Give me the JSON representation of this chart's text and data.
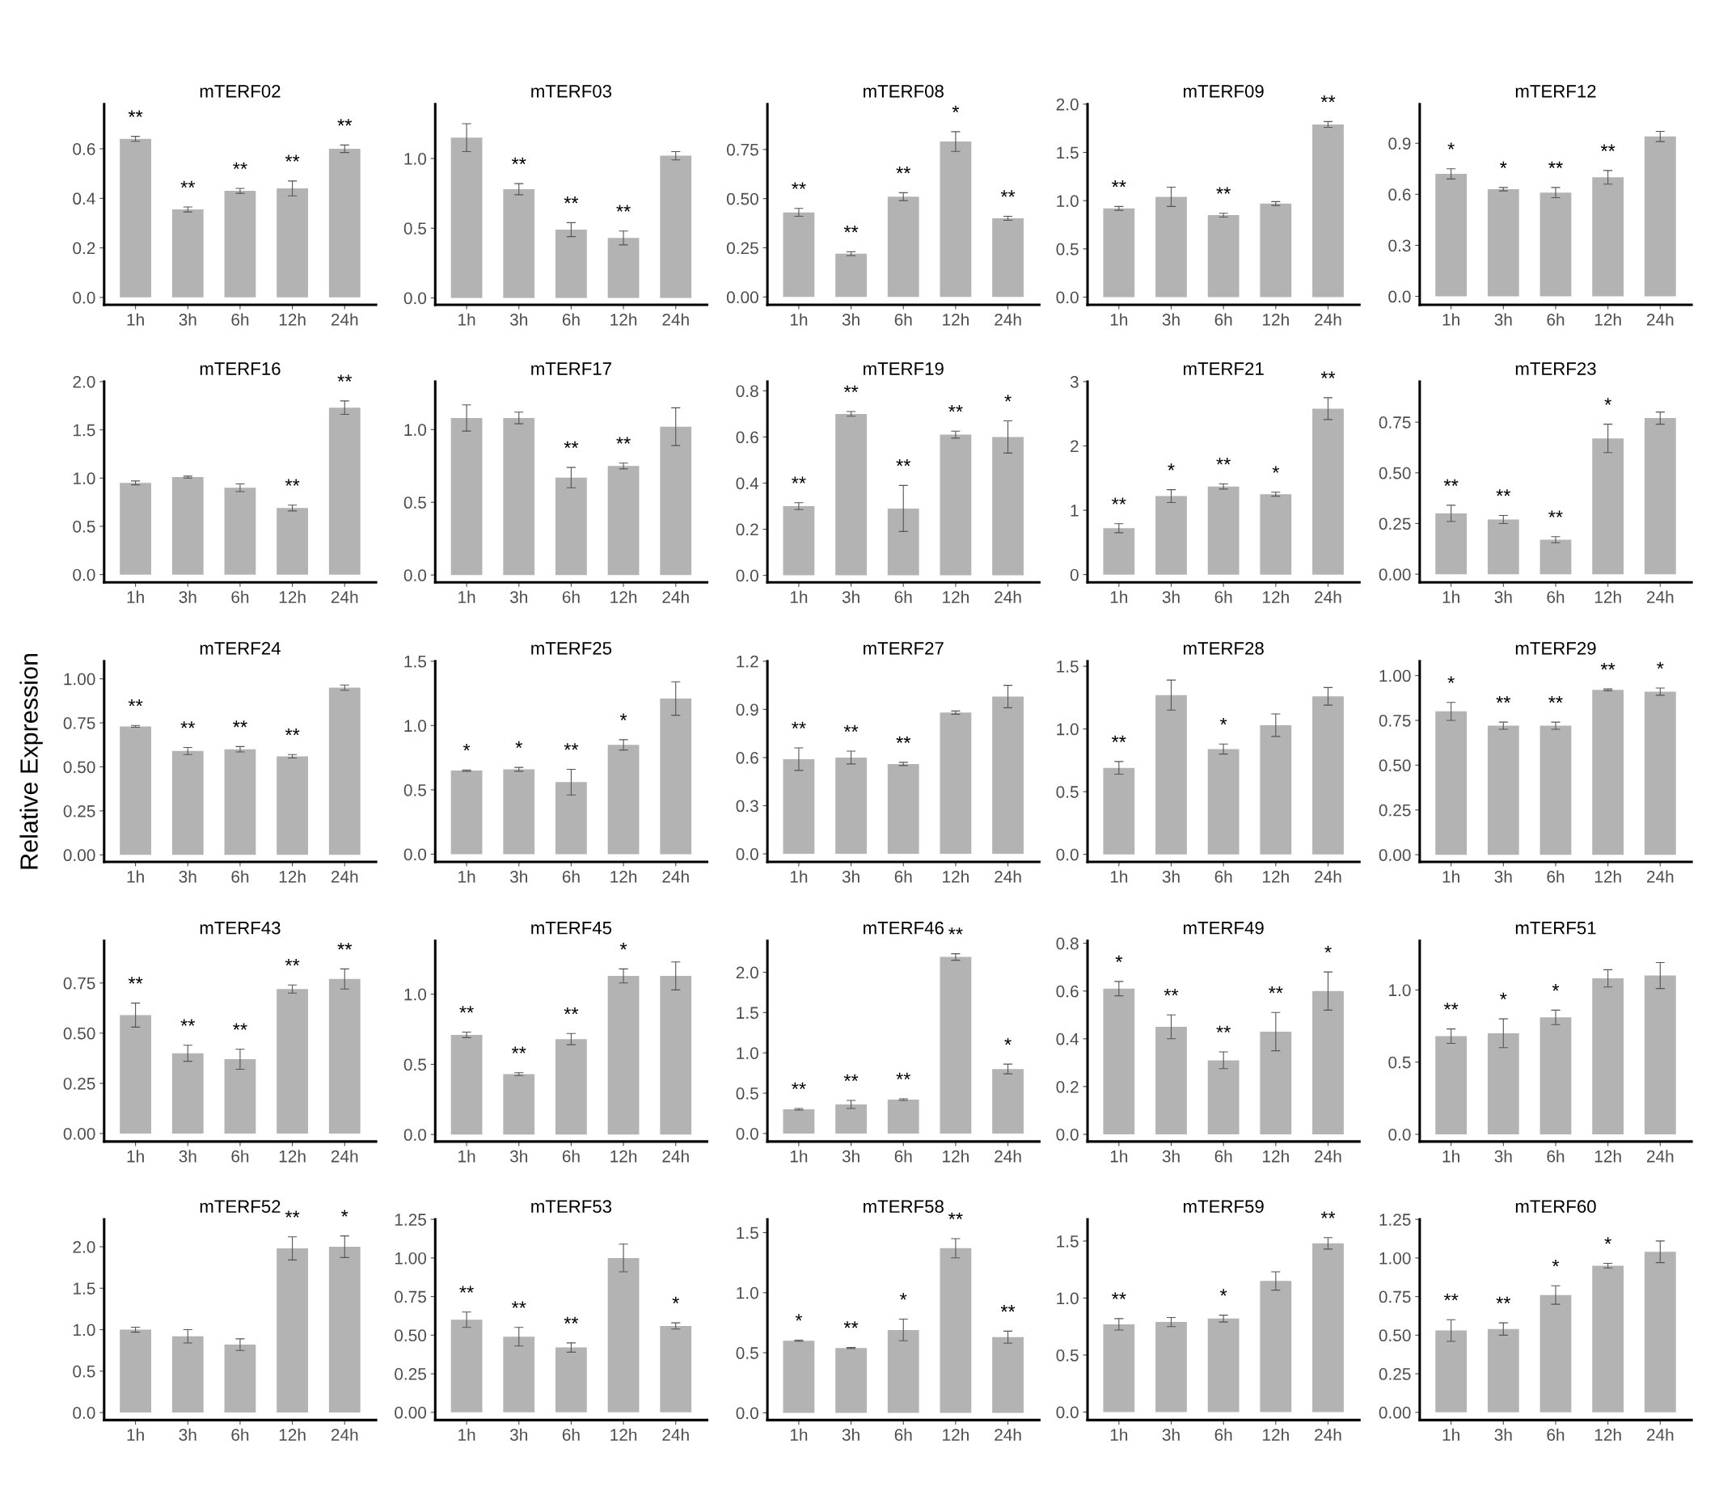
{
  "chart_data": [
    {
      "type": "bar",
      "title": "mTERF02",
      "categories": [
        "1h",
        "3h",
        "6h",
        "12h",
        "24h"
      ],
      "values": [
        0.64,
        0.355,
        0.43,
        0.44,
        0.6
      ],
      "errors": [
        0.01,
        0.01,
        0.01,
        0.03,
        0.015
      ],
      "color": "#b3b3b3",
      "ylim": [
        -0.03,
        0.78
      ],
      "yticks": [
        {
          "value": 0,
          "label": "0.0"
        },
        0.2,
        0.4,
        0.6
      ],
      "annotations": [
        {
          "text": "**",
          "x": "1h",
          "y": 0.65
        },
        {
          "text": "**",
          "x": "3h",
          "y": 0.365
        },
        {
          "text": "**",
          "x": "6h",
          "y": 0.44
        },
        {
          "text": "**",
          "x": "12h",
          "y": 0.47
        },
        {
          "text": "**",
          "x": "24h",
          "y": 0.615
        }
      ]
    },
    {
      "type": "bar",
      "title": "mTERF03",
      "categories": [
        "1h",
        "3h",
        "6h",
        "12h",
        "24h"
      ],
      "values": [
        1.15,
        0.78,
        0.49,
        0.43,
        1.02
      ],
      "errors": [
        0.1,
        0.04,
        0.05,
        0.05,
        0.03
      ],
      "color": "#b3b3b3",
      "ylim": [
        -0.05,
        1.39
      ],
      "yticks": [
        {
          "value": 0,
          "label": "0.0"
        },
        0.5,
        {
          "value": 1,
          "label": "1.0"
        }
      ],
      "annotations": [
        {
          "text": "**",
          "x": "3h",
          "y": 0.82
        },
        {
          "text": "**",
          "x": "6h",
          "y": 0.54
        },
        {
          "text": "**",
          "x": "12h",
          "y": 0.48
        }
      ]
    },
    {
      "type": "bar",
      "title": "mTERF08",
      "categories": [
        "1h",
        "3h",
        "6h",
        "12h",
        "24h"
      ],
      "values": [
        0.43,
        0.22,
        0.51,
        0.79,
        0.4
      ],
      "errors": [
        0.02,
        0.01,
        0.02,
        0.05,
        0.01
      ],
      "color": "#b3b3b3",
      "ylim": [
        -0.04,
        0.98
      ],
      "yticks": [
        {
          "value": 0,
          "label": "0.00"
        },
        0.25,
        {
          "value": 0.5,
          "label": "0.50"
        },
        0.75
      ],
      "annotations": [
        {
          "text": "**",
          "x": "1h",
          "y": 0.45
        },
        {
          "text": "**",
          "x": "3h",
          "y": 0.23
        },
        {
          "text": "**",
          "x": "6h",
          "y": 0.53
        },
        {
          "text": "*",
          "x": "12h",
          "y": 0.84
        },
        {
          "text": "**",
          "x": "24h",
          "y": 0.41
        }
      ]
    },
    {
      "type": "bar",
      "title": "mTERF09",
      "categories": [
        "1h",
        "3h",
        "6h",
        "12h",
        "24h"
      ],
      "values": [
        0.92,
        1.04,
        0.85,
        0.97,
        1.79
      ],
      "errors": [
        0.02,
        0.1,
        0.02,
        0.02,
        0.03
      ],
      "color": "#b3b3b3",
      "ylim": [
        -0.08,
        2.0
      ],
      "yticks": [
        {
          "value": 0,
          "label": "0.0"
        },
        0.5,
        {
          "value": 1,
          "label": "1.0"
        },
        1.5,
        {
          "value": 2,
          "label": "2.0"
        }
      ],
      "annotations": [
        {
          "text": "**",
          "x": "1h",
          "y": 0.94
        },
        {
          "text": "**",
          "x": "6h",
          "y": 0.87
        },
        {
          "text": "**",
          "x": "24h",
          "y": 1.82
        }
      ]
    },
    {
      "type": "bar",
      "title": "mTERF12",
      "categories": [
        "1h",
        "3h",
        "6h",
        "12h",
        "24h"
      ],
      "values": [
        0.72,
        0.63,
        0.61,
        0.7,
        0.94
      ],
      "errors": [
        0.03,
        0.01,
        0.03,
        0.04,
        0.03
      ],
      "color": "#b3b3b3",
      "ylim": [
        -0.05,
        1.13
      ],
      "yticks": [
        {
          "value": 0,
          "label": "0.0"
        },
        0.3,
        0.6,
        0.9
      ],
      "annotations": [
        {
          "text": "*",
          "x": "1h",
          "y": 0.75
        },
        {
          "text": "*",
          "x": "3h",
          "y": 0.64
        },
        {
          "text": "**",
          "x": "6h",
          "y": 0.64
        },
        {
          "text": "**",
          "x": "12h",
          "y": 0.74
        }
      ]
    },
    {
      "type": "bar",
      "title": "mTERF16",
      "categories": [
        "1h",
        "3h",
        "6h",
        "12h",
        "24h"
      ],
      "values": [
        0.95,
        1.01,
        0.9,
        0.69,
        1.73
      ],
      "errors": [
        0.02,
        0.01,
        0.04,
        0.03,
        0.07
      ],
      "color": "#b3b3b3",
      "ylim": [
        -0.08,
        2.0
      ],
      "yticks": [
        {
          "value": 0,
          "label": "0.0"
        },
        0.5,
        {
          "value": 1,
          "label": "1.0"
        },
        1.5,
        {
          "value": 2,
          "label": "2.0"
        }
      ],
      "annotations": [
        {
          "text": "**",
          "x": "12h",
          "y": 0.72
        },
        {
          "text": "**",
          "x": "24h",
          "y": 1.8
        }
      ]
    },
    {
      "type": "bar",
      "title": "mTERF17",
      "categories": [
        "1h",
        "3h",
        "6h",
        "12h",
        "24h"
      ],
      "values": [
        1.08,
        1.08,
        0.67,
        0.75,
        1.02
      ],
      "errors": [
        0.09,
        0.04,
        0.07,
        0.02,
        0.13
      ],
      "color": "#b3b3b3",
      "ylim": [
        -0.05,
        1.33
      ],
      "yticks": [
        {
          "value": 0,
          "label": "0.0"
        },
        0.5,
        {
          "value": 1,
          "label": "1.0"
        }
      ],
      "annotations": [
        {
          "text": "**",
          "x": "6h",
          "y": 0.74
        },
        {
          "text": "**",
          "x": "12h",
          "y": 0.77
        }
      ]
    },
    {
      "type": "bar",
      "title": "mTERF19",
      "categories": [
        "1h",
        "3h",
        "6h",
        "12h",
        "24h"
      ],
      "values": [
        0.3,
        0.7,
        0.29,
        0.61,
        0.6
      ],
      "errors": [
        0.015,
        0.01,
        0.1,
        0.015,
        0.07
      ],
      "color": "#b3b3b3",
      "ylim": [
        -0.03,
        0.84
      ],
      "yticks": [
        {
          "value": 0,
          "label": "0.0"
        },
        0.2,
        0.4,
        0.6,
        0.8
      ],
      "annotations": [
        {
          "text": "**",
          "x": "1h",
          "y": 0.315
        },
        {
          "text": "**",
          "x": "3h",
          "y": 0.71
        },
        {
          "text": "**",
          "x": "6h",
          "y": 0.39
        },
        {
          "text": "**",
          "x": "12h",
          "y": 0.625
        },
        {
          "text": "*",
          "x": "24h",
          "y": 0.67
        }
      ]
    },
    {
      "type": "bar",
      "title": "mTERF21",
      "categories": [
        "1h",
        "3h",
        "6h",
        "12h",
        "24h"
      ],
      "values": [
        0.72,
        1.22,
        1.37,
        1.25,
        2.58
      ],
      "errors": [
        0.07,
        0.1,
        0.04,
        0.03,
        0.17
      ],
      "color": "#b3b3b3",
      "ylim": [
        -0.12,
        3.0
      ],
      "yticks": [
        0,
        1,
        2,
        3
      ],
      "annotations": [
        {
          "text": "**",
          "x": "1h",
          "y": 0.79
        },
        {
          "text": "*",
          "x": "3h",
          "y": 1.32
        },
        {
          "text": "**",
          "x": "6h",
          "y": 1.41
        },
        {
          "text": "*",
          "x": "12h",
          "y": 1.28
        },
        {
          "text": "**",
          "x": "24h",
          "y": 2.75
        }
      ]
    },
    {
      "type": "bar",
      "title": "mTERF23",
      "categories": [
        "1h",
        "3h",
        "6h",
        "12h",
        "24h"
      ],
      "values": [
        0.3,
        0.27,
        0.17,
        0.67,
        0.77
      ],
      "errors": [
        0.04,
        0.02,
        0.015,
        0.07,
        0.03
      ],
      "color": "#b3b3b3",
      "ylim": [
        -0.04,
        0.95
      ],
      "yticks": [
        {
          "value": 0,
          "label": "0.00"
        },
        0.25,
        {
          "value": 0.5,
          "label": "0.50"
        },
        0.75
      ],
      "annotations": [
        {
          "text": "**",
          "x": "1h",
          "y": 0.34
        },
        {
          "text": "**",
          "x": "3h",
          "y": 0.29
        },
        {
          "text": "**",
          "x": "6h",
          "y": 0.185
        },
        {
          "text": "*",
          "x": "12h",
          "y": 0.74
        }
      ]
    },
    {
      "type": "bar",
      "title": "mTERF24",
      "ylabel": "Relative Expression",
      "categories": [
        "1h",
        "3h",
        "6h",
        "12h",
        "24h"
      ],
      "values": [
        0.73,
        0.59,
        0.6,
        0.56,
        0.95
      ],
      "errors": [
        0.005,
        0.02,
        0.015,
        0.01,
        0.015
      ],
      "color": "#b3b3b3",
      "ylim": [
        -0.04,
        1.1
      ],
      "yticks": [
        {
          "value": 0,
          "label": "0.00"
        },
        0.25,
        {
          "value": 0.5,
          "label": "0.50"
        },
        0.75,
        {
          "value": 1,
          "label": "1.00"
        }
      ],
      "annotations": [
        {
          "text": "**",
          "x": "1h",
          "y": 0.735
        },
        {
          "text": "**",
          "x": "3h",
          "y": 0.61
        },
        {
          "text": "**",
          "x": "6h",
          "y": 0.615
        },
        {
          "text": "**",
          "x": "12h",
          "y": 0.57
        }
      ]
    },
    {
      "type": "bar",
      "title": "mTERF25",
      "categories": [
        "1h",
        "3h",
        "6h",
        "12h",
        "24h"
      ],
      "values": [
        0.65,
        0.66,
        0.56,
        0.85,
        1.21
      ],
      "errors": [
        0.005,
        0.015,
        0.1,
        0.04,
        0.13
      ],
      "color": "#b3b3b3",
      "ylim": [
        -0.06,
        1.5
      ],
      "yticks": [
        {
          "value": 0,
          "label": "0.0"
        },
        0.5,
        {
          "value": 1,
          "label": "1.0"
        },
        1.5
      ],
      "annotations": [
        {
          "text": "*",
          "x": "1h",
          "y": 0.655
        },
        {
          "text": "*",
          "x": "3h",
          "y": 0.675
        },
        {
          "text": "**",
          "x": "6h",
          "y": 0.66
        },
        {
          "text": "*",
          "x": "12h",
          "y": 0.89
        }
      ]
    },
    {
      "type": "bar",
      "title": "mTERF27",
      "categories": [
        "1h",
        "3h",
        "6h",
        "12h",
        "24h"
      ],
      "values": [
        0.59,
        0.6,
        0.56,
        0.88,
        0.98
      ],
      "errors": [
        0.07,
        0.04,
        0.01,
        0.01,
        0.07
      ],
      "color": "#b3b3b3",
      "ylim": [
        -0.05,
        1.2
      ],
      "yticks": [
        {
          "value": 0,
          "label": "0.0"
        },
        0.3,
        0.6,
        0.9,
        1.2
      ],
      "annotations": [
        {
          "text": "**",
          "x": "1h",
          "y": 0.66
        },
        {
          "text": "**",
          "x": "3h",
          "y": 0.64
        },
        {
          "text": "**",
          "x": "6h",
          "y": 0.57
        }
      ]
    },
    {
      "type": "bar",
      "title": "mTERF28",
      "categories": [
        "1h",
        "3h",
        "6h",
        "12h",
        "24h"
      ],
      "values": [
        0.69,
        1.27,
        0.84,
        1.03,
        1.26
      ],
      "errors": [
        0.05,
        0.12,
        0.04,
        0.09,
        0.07
      ],
      "color": "#b3b3b3",
      "ylim": [
        -0.06,
        1.54
      ],
      "yticks": [
        {
          "value": 0,
          "label": "0.0"
        },
        0.5,
        {
          "value": 1,
          "label": "1.0"
        },
        1.5
      ],
      "annotations": [
        {
          "text": "**",
          "x": "1h",
          "y": 0.74
        },
        {
          "text": "*",
          "x": "6h",
          "y": 0.88
        }
      ]
    },
    {
      "type": "bar",
      "title": "mTERF29",
      "categories": [
        "1h",
        "3h",
        "6h",
        "12h",
        "24h"
      ],
      "values": [
        0.8,
        0.72,
        0.72,
        0.92,
        0.91
      ],
      "errors": [
        0.05,
        0.02,
        0.02,
        0.005,
        0.02
      ],
      "color": "#b3b3b3",
      "ylim": [
        -0.04,
        1.08
      ],
      "yticks": [
        {
          "value": 0,
          "label": "0.00"
        },
        0.25,
        {
          "value": 0.5,
          "label": "0.50"
        },
        0.75,
        {
          "value": 1,
          "label": "1.00"
        }
      ],
      "annotations": [
        {
          "text": "*",
          "x": "1h",
          "y": 0.85
        },
        {
          "text": "**",
          "x": "3h",
          "y": 0.74
        },
        {
          "text": "**",
          "x": "6h",
          "y": 0.74
        },
        {
          "text": "**",
          "x": "12h",
          "y": 0.925
        },
        {
          "text": "*",
          "x": "24h",
          "y": 0.93
        }
      ]
    },
    {
      "type": "bar",
      "title": "mTERF43",
      "categories": [
        "1h",
        "3h",
        "6h",
        "12h",
        "24h"
      ],
      "values": [
        0.59,
        0.4,
        0.37,
        0.72,
        0.77
      ],
      "errors": [
        0.06,
        0.04,
        0.05,
        0.02,
        0.05
      ],
      "color": "#b3b3b3",
      "ylim": [
        -0.04,
        0.96
      ],
      "yticks": [
        {
          "value": 0,
          "label": "0.00"
        },
        0.25,
        {
          "value": 0.5,
          "label": "0.50"
        },
        0.75
      ],
      "annotations": [
        {
          "text": "**",
          "x": "1h",
          "y": 0.65
        },
        {
          "text": "**",
          "x": "3h",
          "y": 0.44
        },
        {
          "text": "**",
          "x": "6h",
          "y": 0.42
        },
        {
          "text": "**",
          "x": "12h",
          "y": 0.74
        },
        {
          "text": "**",
          "x": "24h",
          "y": 0.82
        }
      ]
    },
    {
      "type": "bar",
      "title": "mTERF45",
      "categories": [
        "1h",
        "3h",
        "6h",
        "12h",
        "24h"
      ],
      "values": [
        0.71,
        0.43,
        0.68,
        1.13,
        1.13
      ],
      "errors": [
        0.02,
        0.01,
        0.04,
        0.05,
        0.1
      ],
      "color": "#b3b3b3",
      "ylim": [
        -0.05,
        1.38
      ],
      "yticks": [
        {
          "value": 0,
          "label": "0.0"
        },
        0.5,
        {
          "value": 1,
          "label": "1.0"
        }
      ],
      "annotations": [
        {
          "text": "**",
          "x": "1h",
          "y": 0.73
        },
        {
          "text": "**",
          "x": "3h",
          "y": 0.44
        },
        {
          "text": "**",
          "x": "6h",
          "y": 0.72
        },
        {
          "text": "*",
          "x": "12h",
          "y": 1.18
        }
      ]
    },
    {
      "type": "bar",
      "title": "mTERF46",
      "categories": [
        "1h",
        "3h",
        "6h",
        "12h",
        "24h"
      ],
      "values": [
        0.3,
        0.36,
        0.42,
        2.19,
        0.8
      ],
      "errors": [
        0.01,
        0.05,
        0.01,
        0.04,
        0.06
      ],
      "color": "#b3b3b3",
      "ylim": [
        -0.1,
        2.39
      ],
      "yticks": [
        {
          "value": 0,
          "label": "0.0"
        },
        0.5,
        {
          "value": 1,
          "label": "1.0"
        },
        1.5,
        {
          "value": 2,
          "label": "2.0"
        }
      ],
      "annotations": [
        {
          "text": "**",
          "x": "1h",
          "y": 0.31
        },
        {
          "text": "**",
          "x": "3h",
          "y": 0.41
        },
        {
          "text": "**",
          "x": "6h",
          "y": 0.43
        },
        {
          "text": "**",
          "x": "12h",
          "y": 2.23
        },
        {
          "text": "*",
          "x": "24h",
          "y": 0.86
        }
      ]
    },
    {
      "type": "bar",
      "title": "mTERF49",
      "categories": [
        "1h",
        "3h",
        "6h",
        "12h",
        "24h"
      ],
      "values": [
        0.61,
        0.45,
        0.31,
        0.43,
        0.6
      ],
      "errors": [
        0.03,
        0.05,
        0.035,
        0.08,
        0.08
      ],
      "color": "#b3b3b3",
      "ylim": [
        -0.03,
        0.81
      ],
      "yticks": [
        {
          "value": 0,
          "label": "0.0"
        },
        0.2,
        0.4,
        0.6,
        0.8
      ],
      "annotations": [
        {
          "text": "*",
          "x": "1h",
          "y": 0.64
        },
        {
          "text": "**",
          "x": "3h",
          "y": 0.5
        },
        {
          "text": "**",
          "x": "6h",
          "y": 0.345
        },
        {
          "text": "**",
          "x": "12h",
          "y": 0.51
        },
        {
          "text": "*",
          "x": "24h",
          "y": 0.68
        }
      ]
    },
    {
      "type": "bar",
      "title": "mTERF51",
      "categories": [
        "1h",
        "3h",
        "6h",
        "12h",
        "24h"
      ],
      "values": [
        0.68,
        0.7,
        0.81,
        1.08,
        1.1
      ],
      "errors": [
        0.05,
        0.1,
        0.05,
        0.06,
        0.09
      ],
      "color": "#b3b3b3",
      "ylim": [
        -0.05,
        1.34
      ],
      "yticks": [
        {
          "value": 0,
          "label": "0.0"
        },
        0.5,
        {
          "value": 1,
          "label": "1.0"
        }
      ],
      "annotations": [
        {
          "text": "**",
          "x": "1h",
          "y": 0.73
        },
        {
          "text": "*",
          "x": "3h",
          "y": 0.8
        },
        {
          "text": "*",
          "x": "6h",
          "y": 0.86
        }
      ]
    },
    {
      "type": "bar",
      "title": "mTERF52",
      "categories": [
        "1h",
        "3h",
        "6h",
        "12h",
        "24h"
      ],
      "values": [
        1.0,
        0.92,
        0.82,
        1.98,
        2.0
      ],
      "errors": [
        0.03,
        0.08,
        0.07,
        0.14,
        0.13
      ],
      "color": "#b3b3b3",
      "ylim": [
        -0.09,
        2.33
      ],
      "yticks": [
        {
          "value": 0,
          "label": "0.0"
        },
        0.5,
        {
          "value": 1,
          "label": "1.0"
        },
        1.5,
        {
          "value": 2,
          "label": "2.0"
        }
      ],
      "annotations": [
        {
          "text": "**",
          "x": "12h",
          "y": 2.12
        },
        {
          "text": "*",
          "x": "24h",
          "y": 2.13
        }
      ]
    },
    {
      "type": "bar",
      "title": "mTERF53",
      "categories": [
        "1h",
        "3h",
        "6h",
        "12h",
        "24h"
      ],
      "values": [
        0.6,
        0.49,
        0.42,
        1.0,
        0.56
      ],
      "errors": [
        0.05,
        0.06,
        0.03,
        0.09,
        0.02
      ],
      "color": "#b3b3b3",
      "ylim": [
        -0.05,
        1.25
      ],
      "yticks": [
        {
          "value": 0,
          "label": "0.00"
        },
        0.25,
        {
          "value": 0.5,
          "label": "0.50"
        },
        0.75,
        {
          "value": 1,
          "label": "1.00"
        },
        1.25
      ],
      "annotations": [
        {
          "text": "**",
          "x": "1h",
          "y": 0.65
        },
        {
          "text": "**",
          "x": "3h",
          "y": 0.55
        },
        {
          "text": "**",
          "x": "6h",
          "y": 0.45
        },
        {
          "text": "*",
          "x": "24h",
          "y": 0.58
        }
      ]
    },
    {
      "type": "bar",
      "title": "mTERF58",
      "categories": [
        "1h",
        "3h",
        "6h",
        "12h",
        "24h"
      ],
      "values": [
        0.6,
        0.54,
        0.69,
        1.37,
        0.63
      ],
      "errors": [
        0.005,
        0.005,
        0.09,
        0.08,
        0.05
      ],
      "color": "#b3b3b3",
      "ylim": [
        -0.06,
        1.61
      ],
      "yticks": [
        {
          "value": 0,
          "label": "0.0"
        },
        0.5,
        {
          "value": 1,
          "label": "1.0"
        },
        1.5
      ],
      "annotations": [
        {
          "text": "*",
          "x": "1h",
          "y": 0.605
        },
        {
          "text": "**",
          "x": "3h",
          "y": 0.545
        },
        {
          "text": "*",
          "x": "6h",
          "y": 0.78
        },
        {
          "text": "**",
          "x": "12h",
          "y": 1.45
        },
        {
          "text": "**",
          "x": "24h",
          "y": 0.68
        }
      ]
    },
    {
      "type": "bar",
      "title": "mTERF59",
      "categories": [
        "1h",
        "3h",
        "6h",
        "12h",
        "24h"
      ],
      "values": [
        0.77,
        0.79,
        0.82,
        1.15,
        1.48
      ],
      "errors": [
        0.05,
        0.04,
        0.03,
        0.08,
        0.05
      ],
      "color": "#b3b3b3",
      "ylim": [
        -0.07,
        1.69
      ],
      "yticks": [
        {
          "value": 0,
          "label": "0.0"
        },
        0.5,
        {
          "value": 1,
          "label": "1.0"
        },
        1.5
      ],
      "annotations": [
        {
          "text": "**",
          "x": "1h",
          "y": 0.82
        },
        {
          "text": "*",
          "x": "6h",
          "y": 0.85
        },
        {
          "text": "**",
          "x": "24h",
          "y": 1.53
        }
      ]
    },
    {
      "type": "bar",
      "title": "mTERF60",
      "categories": [
        "1h",
        "3h",
        "6h",
        "12h",
        "24h"
      ],
      "values": [
        0.53,
        0.54,
        0.76,
        0.95,
        1.04
      ],
      "errors": [
        0.07,
        0.04,
        0.06,
        0.015,
        0.07
      ],
      "color": "#b3b3b3",
      "ylim": [
        -0.05,
        1.25
      ],
      "yticks": [
        {
          "value": 0,
          "label": "0.00"
        },
        0.25,
        {
          "value": 0.5,
          "label": "0.50"
        },
        0.75,
        {
          "value": 1,
          "label": "1.00"
        },
        1.25
      ],
      "annotations": [
        {
          "text": "**",
          "x": "1h",
          "y": 0.6
        },
        {
          "text": "**",
          "x": "3h",
          "y": 0.58
        },
        {
          "text": "*",
          "x": "6h",
          "y": 0.82
        },
        {
          "text": "*",
          "x": "12h",
          "y": 0.965
        }
      ]
    }
  ]
}
